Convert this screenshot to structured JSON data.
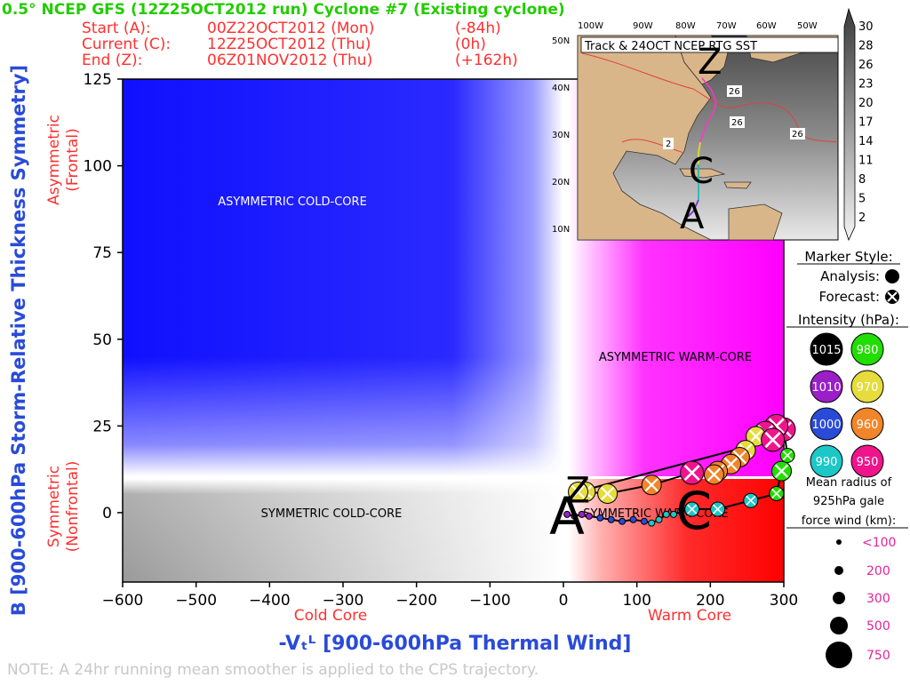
{
  "header": {
    "title": "0.5° NCEP GFS (12Z25OCT2012 run) Cyclone #7 (Existing cyclone)",
    "rows": [
      {
        "label": "Start (A):",
        "time": "00Z22OCT2012 (Mon)",
        "offset": "(-84h)"
      },
      {
        "label": "Current (C):",
        "time": "12Z25OCT2012 (Thu)",
        "offset": "(0h)"
      },
      {
        "label": "End (Z):",
        "time": "06Z01NOV2012 (Thu)",
        "offset": "(+162h)"
      }
    ]
  },
  "axes": {
    "ylabel": "B [900-600hPa Storm-Relative Thickness Symmetry]",
    "xlabel": "-Vₜᴸ [900-600hPa Thermal Wind]",
    "y_top_label": [
      "Asymmetric",
      "(Frontal)"
    ],
    "y_bottom_label": [
      "Symmetric",
      "(Nonfrontal)"
    ],
    "x_left_label": "Cold Core",
    "x_right_label": "Warm Core"
  },
  "regions": {
    "asym_cold": "ASYMMETRIC COLD-CORE",
    "asym_warm": "ASYMMETRIC WARM-CORE",
    "sym_cold": "SYMMETRIC COLD-CORE",
    "sym_warm": "SYMMETRIC WARM-CORE"
  },
  "note": "NOTE:  A 24hr running mean smoother is applied to the CPS trajectory.",
  "inset": {
    "title": "Track & 24OCT NCEP RTG SST",
    "lon_labels": [
      "100W",
      "90W",
      "80W",
      "70W",
      "60W",
      "50W"
    ],
    "lat_labels": [
      "50N",
      "40N",
      "30N",
      "20N",
      "10N"
    ],
    "sst_labels": [
      "26",
      "26",
      "26",
      "2"
    ],
    "colorbar": [
      "30",
      "28",
      "26",
      "23",
      "20",
      "17",
      "14",
      "11",
      "8",
      "5",
      "2"
    ],
    "track_letters": [
      "Z",
      "C",
      "A"
    ]
  },
  "legend": {
    "marker_title": "Marker Style:",
    "analysis": "Analysis:",
    "forecast": "Forecast:",
    "intensity_title": "Intensity (hPa):",
    "intensity": [
      {
        "value": "1015",
        "color": "#000000"
      },
      {
        "value": "980",
        "color": "#22dd00"
      },
      {
        "value": "1010",
        "color": "#9b1fc8"
      },
      {
        "value": "970",
        "color": "#e6dc3c"
      },
      {
        "value": "1000",
        "color": "#2a4bd8"
      },
      {
        "value": "960",
        "color": "#f0852a"
      },
      {
        "value": "990",
        "color": "#1cc7c7"
      },
      {
        "value": "950",
        "color": "#f0148c"
      }
    ],
    "radius_title": [
      "Mean radius of",
      "925hPa gale",
      "force wind (km):"
    ],
    "radius": [
      "<100",
      "200",
      "300",
      "500",
      "750"
    ]
  },
  "chart_data": {
    "type": "scatter",
    "xlim": [
      -600,
      300
    ],
    "ylim": [
      -20,
      125
    ],
    "xticks": [
      -600,
      -500,
      -400,
      -300,
      -200,
      -100,
      0,
      100,
      200,
      300
    ],
    "yticks": [
      0,
      25,
      50,
      75,
      100,
      125
    ],
    "track_labels": {
      "start": "A",
      "current": "C",
      "end": "Z"
    },
    "series": [
      {
        "kind": "analysis",
        "points": [
          {
            "x": 5,
            "y": -0.5,
            "color": "#9b1fc8",
            "size": 1
          },
          {
            "x": 15,
            "y": -1,
            "color": "#9b1fc8",
            "size": 1
          },
          {
            "x": 25,
            "y": -0.5,
            "color": "#9b1fc8",
            "size": 1
          },
          {
            "x": 35,
            "y": -1,
            "color": "#9b1fc8",
            "size": 1
          },
          {
            "x": 50,
            "y": -1.5,
            "color": "#2a4bd8",
            "size": 1
          },
          {
            "x": 65,
            "y": -2,
            "color": "#2a4bd8",
            "size": 1
          },
          {
            "x": 80,
            "y": -2.5,
            "color": "#2a4bd8",
            "size": 1
          },
          {
            "x": 95,
            "y": -2,
            "color": "#2a4bd8",
            "size": 1
          },
          {
            "x": 110,
            "y": -2.5,
            "color": "#2a4bd8",
            "size": 1
          },
          {
            "x": 120,
            "y": -3,
            "color": "#1cc7c7",
            "size": 1
          },
          {
            "x": 130,
            "y": -2,
            "color": "#1cc7c7",
            "size": 1
          },
          {
            "x": 140,
            "y": -0.5,
            "color": "#1cc7c7",
            "size": 1
          },
          {
            "x": 150,
            "y": -0.5,
            "color": "#1cc7c7",
            "size": 1
          },
          {
            "x": 160,
            "y": 0.5,
            "color": "#1cc7c7",
            "size": 1
          },
          {
            "x": 175,
            "y": 1,
            "color": "#1cc7c7",
            "size": 2
          }
        ]
      },
      {
        "kind": "forecast",
        "points": [
          {
            "x": 175,
            "y": 1,
            "color": "#1cc7c7",
            "size": 2
          },
          {
            "x": 210,
            "y": 1,
            "color": "#1cc7c7",
            "size": 2
          },
          {
            "x": 255,
            "y": 3.5,
            "color": "#1cc7c7",
            "size": 2
          },
          {
            "x": 290,
            "y": 5.5,
            "color": "#22dd00",
            "size": 2
          },
          {
            "x": 297,
            "y": 12,
            "color": "#22dd00",
            "size": 3
          },
          {
            "x": 305,
            "y": 16.5,
            "color": "#22dd00",
            "size": 2
          },
          {
            "x": 300,
            "y": 24,
            "color": "#f0148c",
            "size": 4
          },
          {
            "x": 290,
            "y": 25,
            "color": "#f0148c",
            "size": 4
          },
          {
            "x": 275,
            "y": 23,
            "color": "#f0148c",
            "size": 4
          },
          {
            "x": 262,
            "y": 22,
            "color": "#e6dc3c",
            "size": 3
          },
          {
            "x": 248,
            "y": 18,
            "color": "#e6dc3c",
            "size": 3
          },
          {
            "x": 240,
            "y": 16,
            "color": "#f0852a",
            "size": 3
          },
          {
            "x": 228,
            "y": 14,
            "color": "#f0852a",
            "size": 3
          },
          {
            "x": 210,
            "y": 12,
            "color": "#f0852a",
            "size": 3
          },
          {
            "x": 205,
            "y": 11,
            "color": "#f0852a",
            "size": 3
          },
          {
            "x": 175,
            "y": 11.5,
            "color": "#f0148c",
            "size": 4
          },
          {
            "x": 120,
            "y": 8,
            "color": "#f0852a",
            "size": 3
          },
          {
            "x": 60,
            "y": 5.5,
            "color": "#e6dc3c",
            "size": 3
          },
          {
            "x": 30,
            "y": 6,
            "color": "#e6dc3c",
            "size": 3
          },
          {
            "x": 20,
            "y": 6,
            "color": "#e6dc3c",
            "size": 3
          },
          {
            "x": 285,
            "y": 21,
            "color": "#f0148c",
            "size": 4
          }
        ]
      }
    ]
  }
}
